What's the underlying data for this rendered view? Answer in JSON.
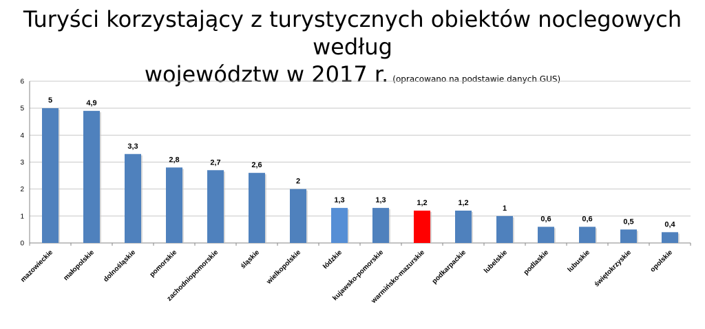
{
  "title_line1": "Turyści korzystający z turystycznych obiektów noclegowych według",
  "title_line2": "województw w 2017 r.",
  "subtitle": "(opracowano na podstawie danych GUS)",
  "colors": {
    "bar": "#4F81BD",
    "highlight_lodzkie": "#558ED5",
    "highlight_warminsko": "#FF0000",
    "grid": "#C8C8C8",
    "axis": "#868686"
  },
  "chart_data": {
    "type": "bar",
    "title": "Turyści korzystający z turystycznych obiektów noclegowych według województw w 2017 r.",
    "categories": [
      "mazowieckie",
      "małopolskie",
      "dolnośląskie",
      "pomorskie",
      "zachodniopomorskie",
      "śląskie",
      "wielkopolskie",
      "łódzkie",
      "kujawsko-pomorskie",
      "warmińsko-mazurskie",
      "podkarpackie",
      "lubelskie",
      "podlaskie",
      "lubuskie",
      "świętokrzyskie",
      "opolskie"
    ],
    "values": [
      5,
      4.9,
      3.3,
      2.8,
      2.7,
      2.6,
      2,
      1.3,
      1.3,
      1.2,
      1.2,
      1,
      0.6,
      0.6,
      0.5,
      0.4
    ],
    "value_labels": [
      "5",
      "4,9",
      "3,3",
      "2,8",
      "2,7",
      "2,6",
      "2",
      "1,3",
      "1,3",
      "1,2",
      "1,2",
      "1",
      "0,6",
      "0,6",
      "0,5",
      "0,4"
    ],
    "bar_colors": [
      "bar",
      "bar",
      "bar",
      "bar",
      "bar",
      "bar",
      "bar",
      "highlight_lodzkie",
      "bar",
      "highlight_warminsko",
      "bar",
      "bar",
      "bar",
      "bar",
      "bar",
      "bar"
    ],
    "ylim": [
      0,
      6
    ],
    "yticks": [
      0,
      1,
      2,
      3,
      4,
      5,
      6
    ],
    "grid": true,
    "xlabel": "",
    "ylabel": ""
  }
}
